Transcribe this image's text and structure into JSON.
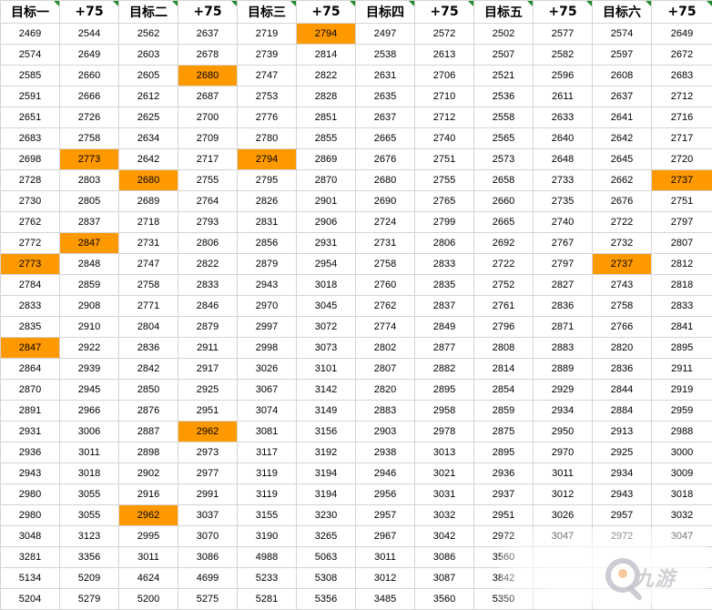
{
  "headers": [
    "目标一",
    "+75",
    "目标二",
    "+75",
    "目标三",
    "+75",
    "目标四",
    "+75",
    "目标五",
    "+75",
    "目标六",
    "+75"
  ],
  "highlight_color": "#ff9900",
  "rows": [
    [
      "2469",
      "2544",
      "2562",
      "2637",
      "2719",
      "2794",
      "2497",
      "2572",
      "2502",
      "2577",
      "2574",
      "2649"
    ],
    [
      "2574",
      "2649",
      "2603",
      "2678",
      "2739",
      "2814",
      "2538",
      "2613",
      "2507",
      "2582",
      "2597",
      "2672"
    ],
    [
      "2585",
      "2660",
      "2605",
      "2680",
      "2747",
      "2822",
      "2631",
      "2706",
      "2521",
      "2596",
      "2608",
      "2683"
    ],
    [
      "2591",
      "2666",
      "2612",
      "2687",
      "2753",
      "2828",
      "2635",
      "2710",
      "2536",
      "2611",
      "2637",
      "2712"
    ],
    [
      "2651",
      "2726",
      "2625",
      "2700",
      "2776",
      "2851",
      "2637",
      "2712",
      "2558",
      "2633",
      "2641",
      "2716"
    ],
    [
      "2683",
      "2758",
      "2634",
      "2709",
      "2780",
      "2855",
      "2665",
      "2740",
      "2565",
      "2640",
      "2642",
      "2717"
    ],
    [
      "2698",
      "2773",
      "2642",
      "2717",
      "2794",
      "2869",
      "2676",
      "2751",
      "2573",
      "2648",
      "2645",
      "2720"
    ],
    [
      "2728",
      "2803",
      "2680",
      "2755",
      "2795",
      "2870",
      "2680",
      "2755",
      "2658",
      "2733",
      "2662",
      "2737"
    ],
    [
      "2730",
      "2805",
      "2689",
      "2764",
      "2826",
      "2901",
      "2690",
      "2765",
      "2660",
      "2735",
      "2676",
      "2751"
    ],
    [
      "2762",
      "2837",
      "2718",
      "2793",
      "2831",
      "2906",
      "2724",
      "2799",
      "2665",
      "2740",
      "2722",
      "2797"
    ],
    [
      "2772",
      "2847",
      "2731",
      "2806",
      "2856",
      "2931",
      "2731",
      "2806",
      "2692",
      "2767",
      "2732",
      "2807"
    ],
    [
      "2773",
      "2848",
      "2747",
      "2822",
      "2879",
      "2954",
      "2758",
      "2833",
      "2722",
      "2797",
      "2737",
      "2812"
    ],
    [
      "2784",
      "2859",
      "2758",
      "2833",
      "2943",
      "3018",
      "2760",
      "2835",
      "2752",
      "2827",
      "2743",
      "2818"
    ],
    [
      "2833",
      "2908",
      "2771",
      "2846",
      "2970",
      "3045",
      "2762",
      "2837",
      "2761",
      "2836",
      "2758",
      "2833"
    ],
    [
      "2835",
      "2910",
      "2804",
      "2879",
      "2997",
      "3072",
      "2774",
      "2849",
      "2796",
      "2871",
      "2766",
      "2841"
    ],
    [
      "2847",
      "2922",
      "2836",
      "2911",
      "2998",
      "3073",
      "2802",
      "2877",
      "2808",
      "2883",
      "2820",
      "2895"
    ],
    [
      "2864",
      "2939",
      "2842",
      "2917",
      "3026",
      "3101",
      "2807",
      "2882",
      "2814",
      "2889",
      "2836",
      "2911"
    ],
    [
      "2870",
      "2945",
      "2850",
      "2925",
      "3067",
      "3142",
      "2820",
      "2895",
      "2854",
      "2929",
      "2844",
      "2919"
    ],
    [
      "2891",
      "2966",
      "2876",
      "2951",
      "3074",
      "3149",
      "2883",
      "2958",
      "2859",
      "2934",
      "2884",
      "2959"
    ],
    [
      "2931",
      "3006",
      "2887",
      "2962",
      "3081",
      "3156",
      "2903",
      "2978",
      "2875",
      "2950",
      "2913",
      "2988"
    ],
    [
      "2936",
      "3011",
      "2898",
      "2973",
      "3117",
      "3192",
      "2938",
      "3013",
      "2895",
      "2970",
      "2925",
      "3000"
    ],
    [
      "2943",
      "3018",
      "2902",
      "2977",
      "3119",
      "3194",
      "2946",
      "3021",
      "2936",
      "3011",
      "2934",
      "3009"
    ],
    [
      "2980",
      "3055",
      "2916",
      "2991",
      "3119",
      "3194",
      "2956",
      "3031",
      "2937",
      "3012",
      "2943",
      "3018"
    ],
    [
      "2980",
      "3055",
      "2962",
      "3037",
      "3155",
      "3230",
      "2957",
      "3032",
      "2951",
      "3026",
      "2957",
      "3032"
    ],
    [
      "3048",
      "3123",
      "2995",
      "3070",
      "3190",
      "3265",
      "2967",
      "3042",
      "2972",
      "3047",
      "2972",
      "3047"
    ],
    [
      "3281",
      "3356",
      "3011",
      "3086",
      "4988",
      "5063",
      "3011",
      "3086",
      "3560",
      "",
      "",
      ""
    ],
    [
      "5134",
      "5209",
      "4624",
      "4699",
      "5233",
      "5308",
      "3012",
      "3087",
      "3842",
      "",
      "",
      ""
    ],
    [
      "5204",
      "5279",
      "5200",
      "5275",
      "5281",
      "5356",
      "3485",
      "3560",
      "5350",
      "",
      "",
      ""
    ]
  ],
  "highlights": [
    [
      0,
      5
    ],
    [
      2,
      3
    ],
    [
      6,
      1
    ],
    [
      6,
      4
    ],
    [
      7,
      2
    ],
    [
      7,
      11
    ],
    [
      10,
      1
    ],
    [
      11,
      0
    ],
    [
      11,
      10
    ],
    [
      15,
      0
    ],
    [
      19,
      3
    ],
    [
      23,
      2
    ]
  ],
  "watermark": {
    "logo_icon": "nine-game-logo-icon",
    "text": "九游"
  }
}
